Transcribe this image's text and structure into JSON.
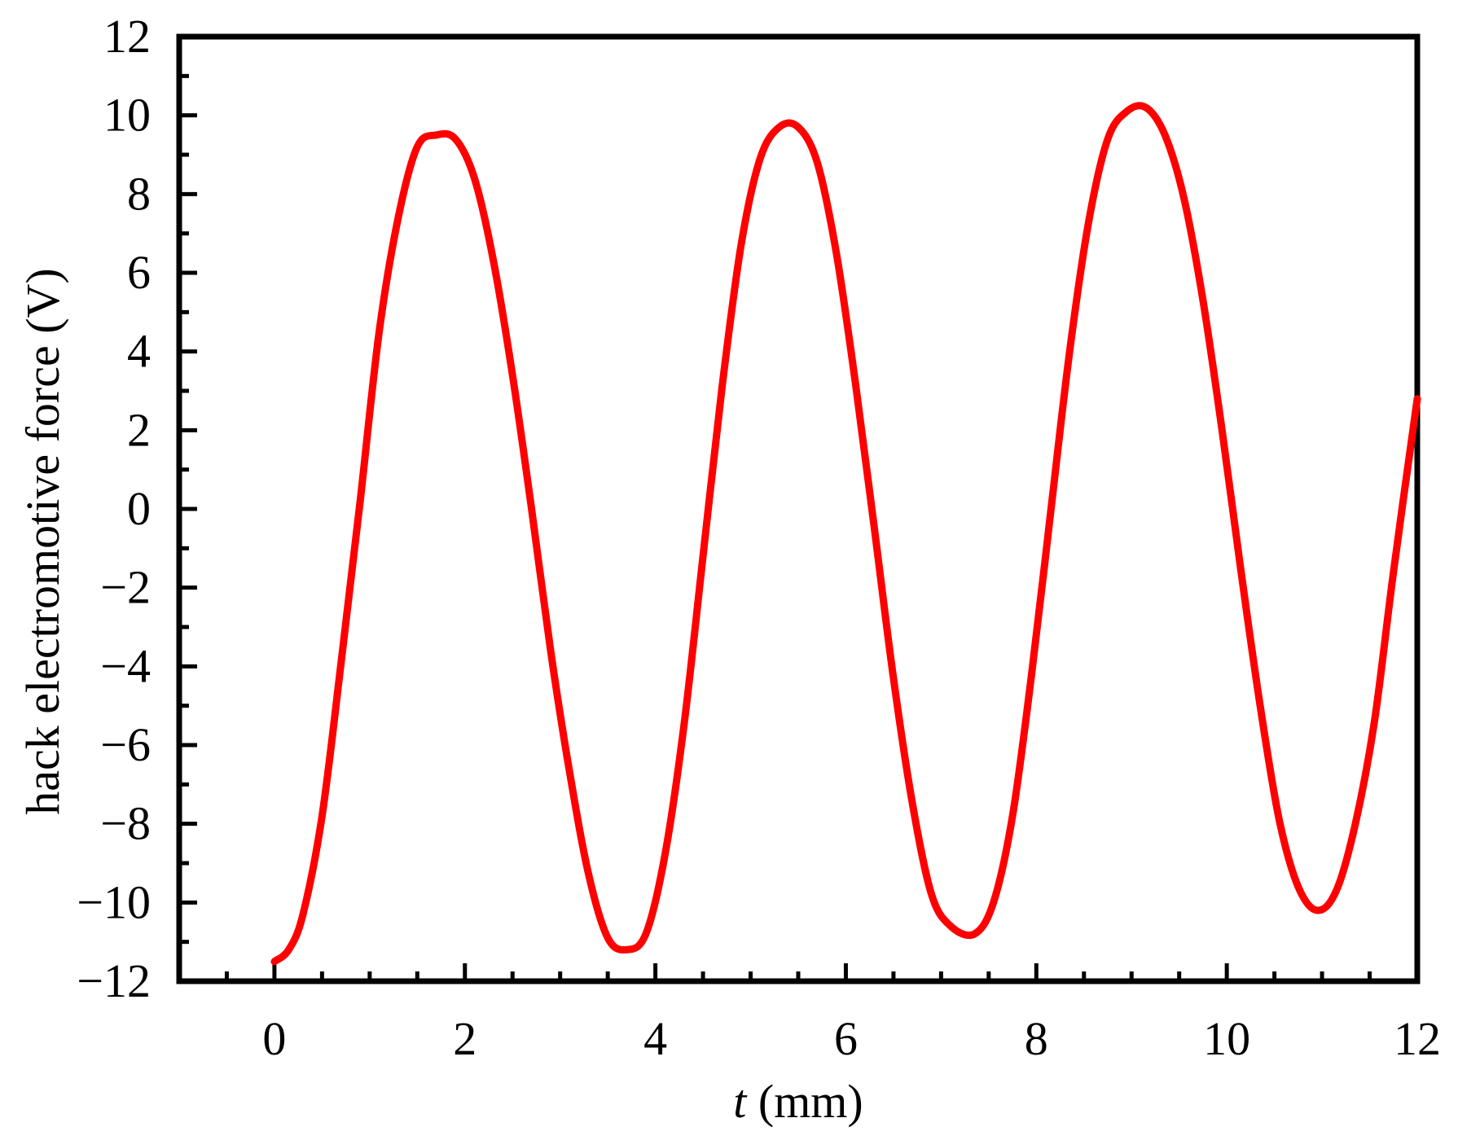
{
  "chart_data": {
    "type": "line",
    "title": "",
    "xlabel_italic": "t",
    "xlabel_rest": " (mm)",
    "ylabel": "hack electromotive force (V)",
    "xlim": [
      -1,
      12
    ],
    "ylim": [
      -12,
      12
    ],
    "xticks": [
      0,
      2,
      4,
      6,
      8,
      10,
      12
    ],
    "yticks": [
      -12,
      -10,
      -8,
      -6,
      -4,
      -2,
      0,
      2,
      4,
      6,
      8,
      10,
      12
    ],
    "xtick_labels": [
      "0",
      "2",
      "4",
      "6",
      "8",
      "10",
      "12"
    ],
    "ytick_labels": [
      "−12",
      "−10",
      "−8",
      "−6",
      "−4",
      "−2",
      "0",
      "2",
      "4",
      "6",
      "8",
      "10",
      "12"
    ],
    "grid": false,
    "legend": "none",
    "line_color": "#ff0000",
    "series": [
      {
        "x": [
          0,
          0.15,
          0.3,
          0.5,
          0.7,
          0.9,
          1.1,
          1.3,
          1.5,
          1.7,
          1.9,
          2.1,
          2.3,
          2.5,
          2.7,
          2.9,
          3.1,
          3.3,
          3.5,
          3.7,
          3.9,
          4.1,
          4.3,
          4.5,
          4.7,
          4.9,
          5.1,
          5.3,
          5.5,
          5.7,
          5.9,
          6.1,
          6.3,
          6.5,
          6.7,
          6.9,
          7.1,
          7.35,
          7.55,
          7.75,
          7.95,
          8.15,
          8.35,
          8.55,
          8.75,
          8.95,
          9.15,
          9.35,
          9.55,
          9.75,
          9.95,
          10.15,
          10.35,
          10.55,
          10.75,
          10.95,
          11.15,
          11.35,
          11.55,
          11.75,
          12.0
        ],
        "y": [
          -11.5,
          -11.2,
          -10.3,
          -7.8,
          -3.9,
          0.2,
          4.5,
          7.4,
          9.2,
          9.5,
          9.4,
          8.4,
          6.3,
          3.4,
          0.0,
          -3.6,
          -6.7,
          -9.3,
          -10.9,
          -11.2,
          -10.8,
          -8.8,
          -5.5,
          -1.2,
          3.1,
          6.7,
          8.9,
          9.7,
          9.7,
          8.8,
          6.5,
          3.2,
          -0.5,
          -4.3,
          -7.5,
          -9.8,
          -10.6,
          -10.8,
          -10.0,
          -7.8,
          -4.2,
          -0.1,
          4.0,
          7.3,
          9.4,
          10.1,
          10.2,
          9.5,
          7.9,
          5.3,
          2.0,
          -1.6,
          -5.0,
          -7.9,
          -9.6,
          -10.2,
          -9.7,
          -8.0,
          -5.4,
          -1.6,
          2.8
        ]
      }
    ]
  }
}
